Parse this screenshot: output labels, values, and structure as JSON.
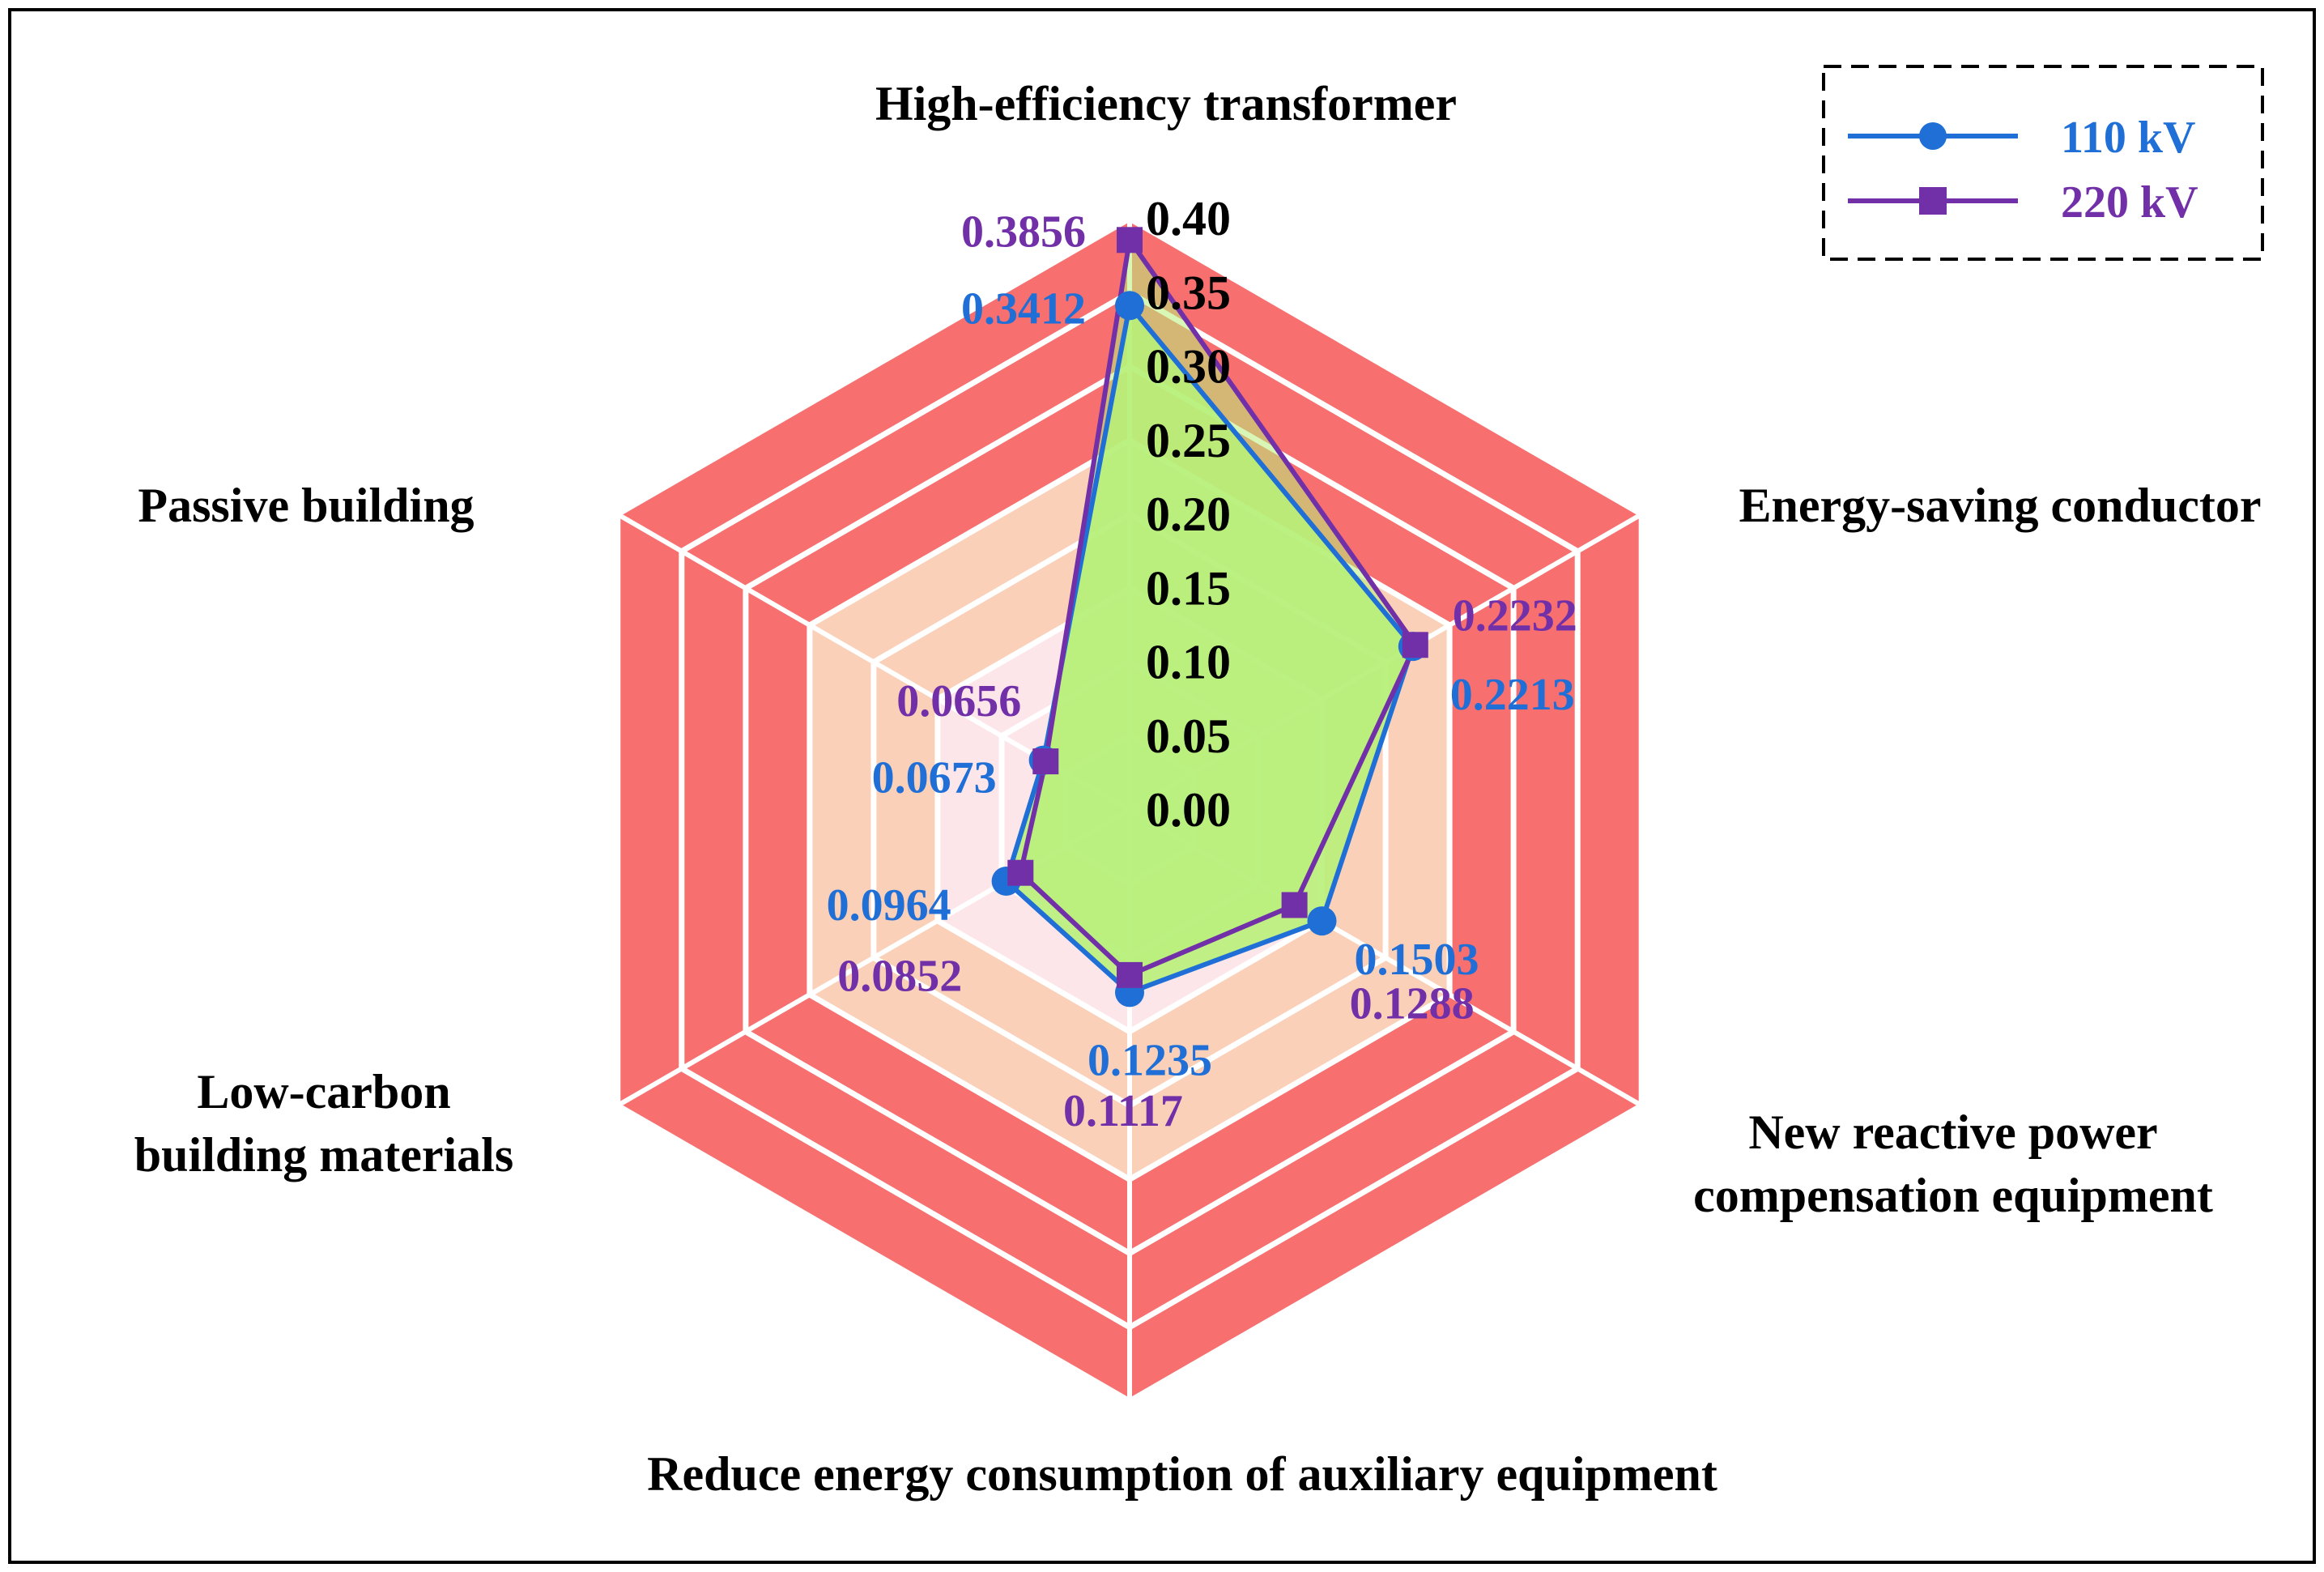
{
  "chart_data": {
    "type": "radar",
    "title": "",
    "axes": [
      "High-efficiency transformer",
      "Energy-saving conductor",
      "New reactive power compensation equipment",
      "Reduce energy consumption of auxiliary equipment",
      "Low-carbon building materials",
      "Passive building"
    ],
    "axis_label_lines": [
      [
        "High-efficiency transformer"
      ],
      [
        "Energy-saving conductor"
      ],
      [
        "New reactive power",
        "compensation equipment"
      ],
      [
        "Reduce energy consumption of auxiliary equipment"
      ],
      [
        "Low-carbon",
        "building materials"
      ],
      [
        "Passive building"
      ]
    ],
    "rlim": [
      0,
      0.4
    ],
    "ticks": [
      "0.00",
      "0.05",
      "0.10",
      "0.15",
      "0.20",
      "0.25",
      "0.30",
      "0.35",
      "0.40"
    ],
    "band_colors": [
      "#e5f3f5",
      "#fde6ea",
      "#fde6ea",
      "#fbd0b8",
      "#fbd0b8",
      "#f76f6f",
      "#f76f6f",
      "#f76f6f"
    ],
    "band_separator_color": "#ffffff",
    "series": [
      {
        "name": "110 kV",
        "values": [
          0.3412,
          0.2213,
          0.1503,
          0.1235,
          0.0964,
          0.0673
        ],
        "labels": [
          "0.3412",
          "0.2213",
          "0.1503",
          "0.1235",
          "0.0964",
          "0.0673"
        ],
        "color": "#1f6fd6",
        "marker": "circle",
        "fill": "#b8f07a"
      },
      {
        "name": "220 kV",
        "values": [
          0.3856,
          0.2232,
          0.1288,
          0.1117,
          0.0852,
          0.0656
        ],
        "labels": [
          "0.3856",
          "0.2232",
          "0.1288",
          "0.1117",
          "0.0852",
          "0.0656"
        ],
        "color": "#7230a8",
        "marker": "square",
        "fill": "#b8f07a"
      }
    ],
    "legend": {
      "position": "top-right"
    }
  }
}
